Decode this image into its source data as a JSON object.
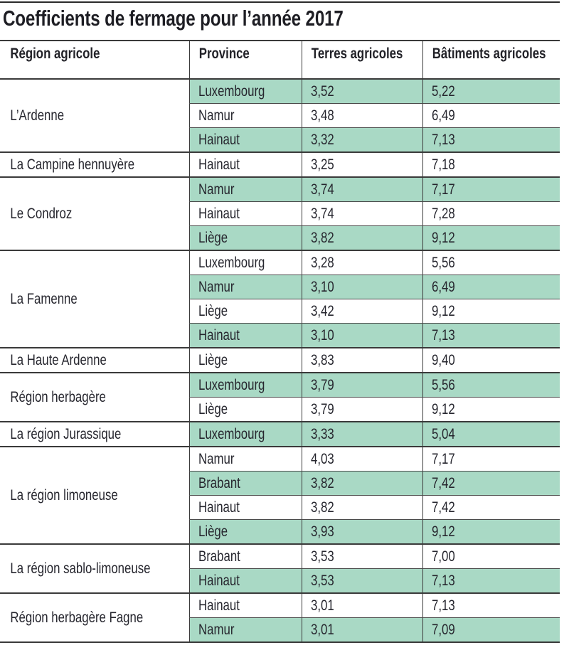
{
  "title": "Coefficients de fermage pour l’année 2017",
  "colors": {
    "shaded_row": "#a9d9c5",
    "rule": "#3a3a3a",
    "text": "#26262e"
  },
  "table": {
    "headers": [
      "Région agricole",
      "Province",
      "Terres agricoles",
      "Bâtiments agricoles"
    ],
    "groups": [
      {
        "region": "L’Ardenne",
        "rows": [
          {
            "province": "Luxembourg",
            "terres": "3,52",
            "batiments": "5,22",
            "shaded": true
          },
          {
            "province": "Namur",
            "terres": "3,48",
            "batiments": "6,49",
            "shaded": false
          },
          {
            "province": "Hainaut",
            "terres": "3,32",
            "batiments": "7,13",
            "shaded": true
          }
        ]
      },
      {
        "region": "La Campine hennuyère",
        "rows": [
          {
            "province": "Hainaut",
            "terres": "3,25",
            "batiments": "7,18",
            "shaded": false
          }
        ]
      },
      {
        "region": "Le Condroz",
        "rows": [
          {
            "province": "Namur",
            "terres": "3,74",
            "batiments": "7,17",
            "shaded": true
          },
          {
            "province": "Hainaut",
            "terres": "3,74",
            "batiments": "7,28",
            "shaded": false
          },
          {
            "province": "Liège",
            "terres": "3,82",
            "batiments": "9,12",
            "shaded": true
          }
        ]
      },
      {
        "region": "La Famenne",
        "rows": [
          {
            "province": "Luxembourg",
            "terres": "3,28",
            "batiments": "5,56",
            "shaded": false
          },
          {
            "province": "Namur",
            "terres": "3,10",
            "batiments": "6,49",
            "shaded": true
          },
          {
            "province": "Liège",
            "terres": "3,42",
            "batiments": "9,12",
            "shaded": false
          },
          {
            "province": "Hainaut",
            "terres": "3,10",
            "batiments": "7,13",
            "shaded": true
          }
        ]
      },
      {
        "region": "La Haute Ardenne",
        "rows": [
          {
            "province": "Liège",
            "terres": "3,83",
            "batiments": "9,40",
            "shaded": false
          }
        ]
      },
      {
        "region": "Région herbagère",
        "rows": [
          {
            "province": "Luxembourg",
            "terres": "3,79",
            "batiments": "5,56",
            "shaded": true
          },
          {
            "province": "Liège",
            "terres": "3,79",
            "batiments": "9,12",
            "shaded": false
          }
        ]
      },
      {
        "region": "La région Jurassique",
        "rows": [
          {
            "province": "Luxembourg",
            "terres": "3,33",
            "batiments": "5,04",
            "shaded": true
          }
        ]
      },
      {
        "region": "La région limoneuse",
        "rows": [
          {
            "province": "Namur",
            "terres": "4,03",
            "batiments": "7,17",
            "shaded": false
          },
          {
            "province": "Brabant",
            "terres": "3,82",
            "batiments": "7,42",
            "shaded": true
          },
          {
            "province": "Hainaut",
            "terres": "3,82",
            "batiments": "7,42",
            "shaded": false
          },
          {
            "province": "Liège",
            "terres": "3,93",
            "batiments": "9,12",
            "shaded": true
          }
        ]
      },
      {
        "region": "La région sablo-limoneuse",
        "rows": [
          {
            "province": "Brabant",
            "terres": "3,53",
            "batiments": "7,00",
            "shaded": false
          },
          {
            "province": "Hainaut",
            "terres": "3,53",
            "batiments": "7,13",
            "shaded": true
          }
        ]
      },
      {
        "region": "Région herbagère Fagne",
        "rows": [
          {
            "province": "Hainaut",
            "terres": "3,01",
            "batiments": "7,13",
            "shaded": false
          },
          {
            "province": "Namur",
            "terres": "3,01",
            "batiments": "7,09",
            "shaded": true
          }
        ]
      }
    ]
  }
}
